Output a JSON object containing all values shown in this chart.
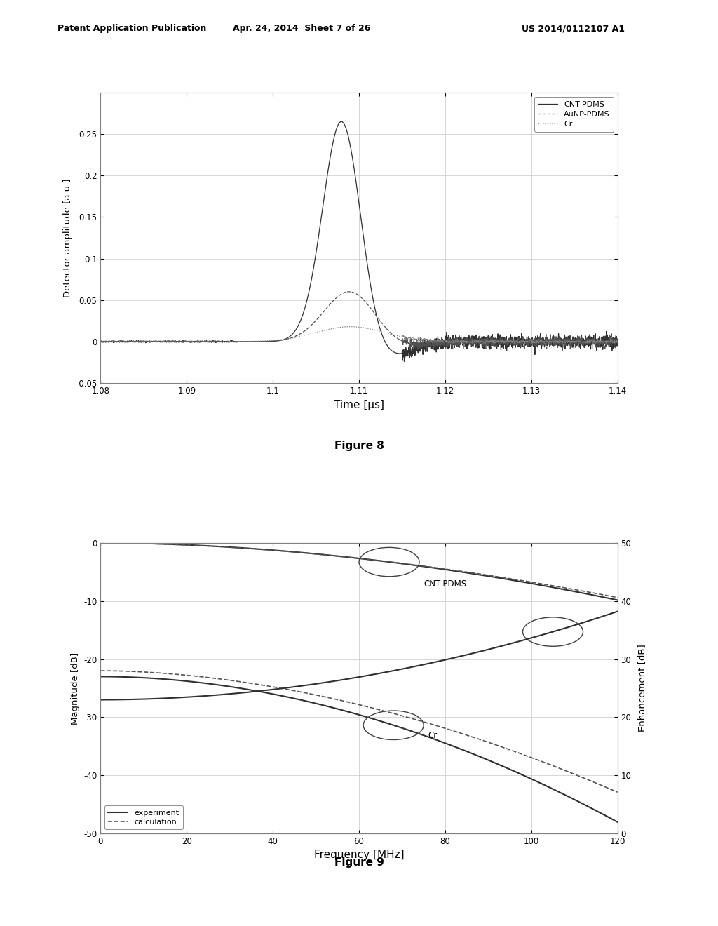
{
  "fig8": {
    "xlabel": "Time [μs]",
    "ylabel": "Detector amplitude [a.u.]",
    "xlim": [
      1.08,
      1.14
    ],
    "ylim": [
      -0.05,
      0.3
    ],
    "yticks": [
      -0.05,
      0.0,
      0.05,
      0.1,
      0.15,
      0.2,
      0.25
    ],
    "xticks": [
      1.08,
      1.09,
      1.1,
      1.11,
      1.12,
      1.13,
      1.14
    ],
    "xtick_labels": [
      "1.08",
      "1.09",
      "1.1",
      "1.11",
      "1.12",
      "1.13",
      "1.14"
    ],
    "ytick_labels": [
      "-0.05",
      "0",
      "0.05",
      "0.1",
      "0.15",
      "0.2",
      "0.25"
    ],
    "legend_labels": [
      "CNT-PDMS",
      "AuNP-PDMS",
      "Cr"
    ],
    "legend_linestyles": [
      "-",
      "--",
      ":"
    ],
    "legend_colors": [
      "#404040",
      "#404040",
      "#808080"
    ]
  },
  "fig9": {
    "xlabel": "Frequency [MHz]",
    "ylabel_left": "Magnitude [dB]",
    "ylabel_right": "Enhancement [dB]",
    "xlim": [
      0,
      120
    ],
    "ylim_left": [
      -50,
      0
    ],
    "ylim_right": [
      0,
      50
    ],
    "xticks": [
      0,
      20,
      40,
      60,
      80,
      100,
      120
    ],
    "yticks_left": [
      -50,
      -40,
      -30,
      -20,
      -10,
      0
    ],
    "yticks_right": [
      0,
      10,
      20,
      30,
      40,
      50
    ],
    "xtick_labels": [
      "0",
      "20",
      "40",
      "60",
      "80",
      "100",
      "120"
    ],
    "ytick_labels_left": [
      "-50",
      "-40",
      "-30",
      "-20",
      "-10",
      "0"
    ],
    "ytick_labels_right": [
      "0",
      "10",
      "20",
      "30",
      "40",
      "50"
    ],
    "legend_labels": [
      "experiment",
      "calculation"
    ],
    "legend_linestyles": [
      "-",
      "--"
    ],
    "legend_colors": [
      "#303030",
      "#606060"
    ]
  },
  "header": {
    "left": "Patent Application Publication",
    "center": "Apr. 24, 2014  Sheet 7 of 26",
    "right": "US 2014/0112107 A1"
  },
  "caption8": "Figure 8",
  "caption9": "Figure 9",
  "background_color": "#ffffff",
  "line_color": "#404040",
  "grid_color": "#c8c8c8"
}
